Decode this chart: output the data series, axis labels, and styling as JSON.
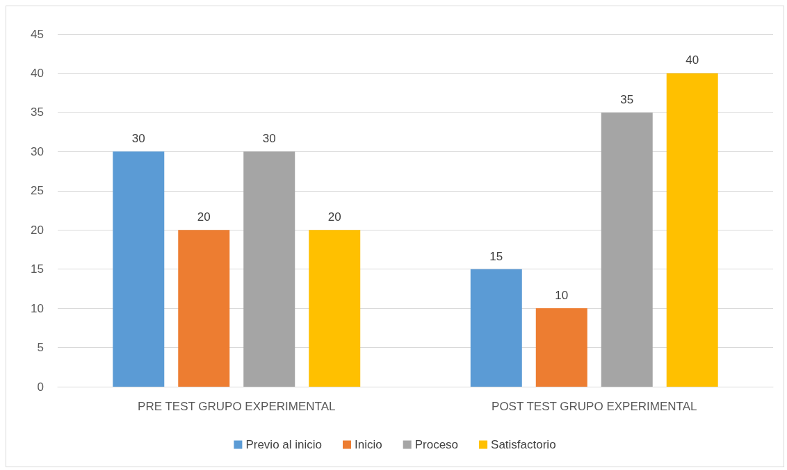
{
  "chart_data": {
    "type": "bar",
    "categories": [
      "PRE TEST GRUPO EXPERIMENTAL",
      "POST TEST GRUPO EXPERIMENTAL"
    ],
    "series": [
      {
        "name": "Previo al inicio",
        "color": "#5b9bd5",
        "values": [
          30,
          15
        ]
      },
      {
        "name": "Inicio",
        "color": "#ed7d31",
        "values": [
          20,
          10
        ]
      },
      {
        "name": "Proceso",
        "color": "#a5a5a5",
        "values": [
          30,
          35
        ]
      },
      {
        "name": "Satisfactorio",
        "color": "#ffc000",
        "values": [
          20,
          40
        ]
      }
    ],
    "ylim": [
      0,
      45
    ],
    "yticks": [
      0,
      5,
      10,
      15,
      20,
      25,
      30,
      35,
      40,
      45
    ],
    "grid": "y",
    "legend": "bottom",
    "data_labels": true
  }
}
